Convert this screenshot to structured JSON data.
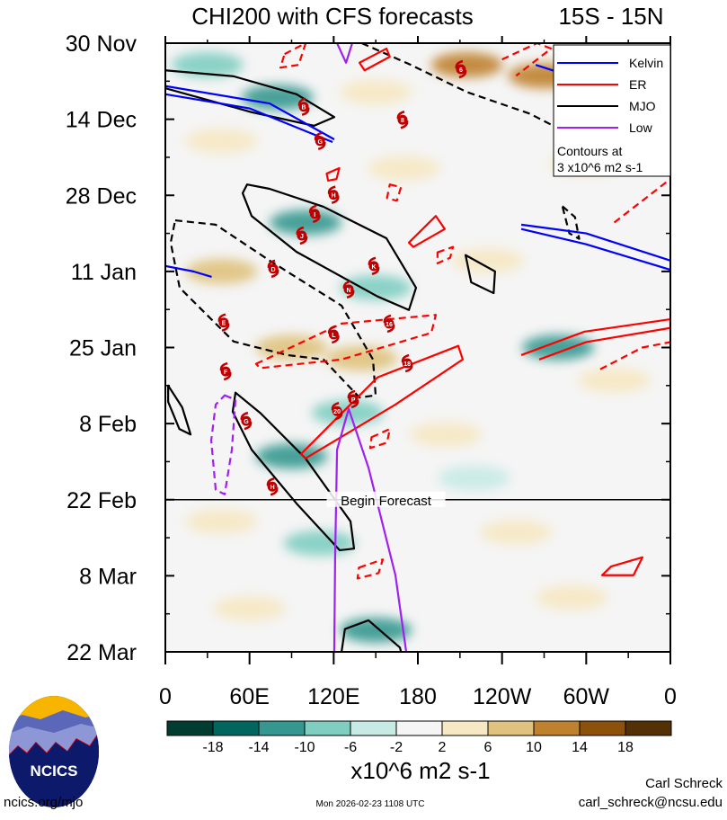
{
  "chart_data": {
    "type": "heatmap",
    "title": "CHI200 with CFS forecasts",
    "region": "15S - 15N",
    "x_axis": {
      "range_lon": [
        0,
        360
      ],
      "ticks": [
        {
          "lon": 0,
          "label": "0"
        },
        {
          "lon": 60,
          "label": "60E"
        },
        {
          "lon": 120,
          "label": "120E"
        },
        {
          "lon": 180,
          "label": "180"
        },
        {
          "lon": 240,
          "label": "120W"
        },
        {
          "lon": 300,
          "label": "60W"
        },
        {
          "lon": 360,
          "label": "0"
        }
      ]
    },
    "y_axis": {
      "range_days": [
        0,
        112
      ],
      "direction": "down",
      "ticks": [
        {
          "day": 0,
          "label": "30 Nov"
        },
        {
          "day": 14,
          "label": "14 Dec"
        },
        {
          "day": 28,
          "label": "28 Dec"
        },
        {
          "day": 42,
          "label": "11 Jan"
        },
        {
          "day": 56,
          "label": "25 Jan"
        },
        {
          "day": 70,
          "label": "8 Feb"
        },
        {
          "day": 84,
          "label": "22 Feb"
        },
        {
          "day": 98,
          "label": "8 Mar"
        },
        {
          "day": 112,
          "label": "22 Mar"
        }
      ]
    },
    "forecast_start": {
      "day": 84,
      "label": "Begin Forecast"
    },
    "colorbar": {
      "levels": [
        "-18",
        "-14",
        "-10",
        "-6",
        "-2",
        "2",
        "6",
        "10",
        "14",
        "18"
      ],
      "colors": [
        "#003c30",
        "#01665e",
        "#35978f",
        "#80cdc1",
        "#c7eae5",
        "#f5f5f5",
        "#f6e8c3",
        "#dfc27d",
        "#bf812d",
        "#8c510a",
        "#543005"
      ],
      "units": "x10^6 m2 s-1"
    },
    "anomaly_patches": [
      {
        "lon": 30,
        "day": 4,
        "value": -8
      },
      {
        "lon": 80,
        "day": 10,
        "value": -10
      },
      {
        "lon": 215,
        "day": 4,
        "value": 12
      },
      {
        "lon": 270,
        "day": 6,
        "value": 12
      },
      {
        "lon": 150,
        "day": 9,
        "value": 4
      },
      {
        "lon": 40,
        "day": 18,
        "value": 4
      },
      {
        "lon": 170,
        "day": 23,
        "value": 5
      },
      {
        "lon": 300,
        "day": 22,
        "value": 4
      },
      {
        "lon": 100,
        "day": 33,
        "value": -12
      },
      {
        "lon": 40,
        "day": 42,
        "value": 8
      },
      {
        "lon": 150,
        "day": 45,
        "value": -6
      },
      {
        "lon": 230,
        "day": 40,
        "value": 4
      },
      {
        "lon": 90,
        "day": 56,
        "value": 9
      },
      {
        "lon": 140,
        "day": 58,
        "value": 7
      },
      {
        "lon": 280,
        "day": 56,
        "value": -10
      },
      {
        "lon": 320,
        "day": 62,
        "value": 6
      },
      {
        "lon": 90,
        "day": 76,
        "value": -10
      },
      {
        "lon": 130,
        "day": 68,
        "value": -8
      },
      {
        "lon": 200,
        "day": 72,
        "value": 4
      },
      {
        "lon": 40,
        "day": 88,
        "value": 5
      },
      {
        "lon": 110,
        "day": 92,
        "value": -6
      },
      {
        "lon": 250,
        "day": 90,
        "value": 4
      },
      {
        "lon": 150,
        "day": 108,
        "value": -10
      },
      {
        "lon": 60,
        "day": 104,
        "value": 3
      },
      {
        "lon": 290,
        "day": 102,
        "value": 4
      },
      {
        "lon": 220,
        "day": 80,
        "value": -4
      }
    ],
    "contours": [
      {
        "wave": "MJO",
        "dashed": false,
        "closed": false,
        "points": [
          [
            0,
            5
          ],
          [
            48.7,
            6.1
          ],
          [
            93.5,
            9.4
          ],
          [
            120.4,
            13.6
          ],
          [
            106,
            15.2
          ],
          [
            61.5,
            12.7
          ],
          [
            0,
            8.3
          ]
        ]
      },
      {
        "wave": "MJO",
        "dashed": false,
        "closed": true,
        "points": [
          [
            58.3,
            26.0
          ],
          [
            74.3,
            26.8
          ],
          [
            112.7,
            30.1
          ],
          [
            157.6,
            35.9
          ],
          [
            178.7,
            45.0
          ],
          [
            173.6,
            49.1
          ],
          [
            151.2,
            46.6
          ],
          [
            93.5,
            38.4
          ],
          [
            61.5,
            31.8
          ],
          [
            55.1,
            27.6
          ]
        ]
      },
      {
        "wave": "MJO",
        "dashed": true,
        "closed": true,
        "points": [
          [
            7.0,
            32.6
          ],
          [
            35.9,
            33.4
          ],
          [
            74.3,
            40.0
          ],
          [
            125.6,
            48.3
          ],
          [
            148.0,
            58.2
          ],
          [
            149.9,
            64.8
          ],
          [
            138.4,
            65.2
          ],
          [
            112.7,
            58.2
          ],
          [
            87.1,
            57.4
          ],
          [
            48.7,
            54.9
          ],
          [
            10.2,
            45.0
          ],
          [
            3.8,
            36.7
          ]
        ]
      },
      {
        "wave": "MJO",
        "dashed": true,
        "closed": false,
        "points": [
          [
            140,
            0
          ],
          [
            175,
            4
          ],
          [
            215,
            9
          ],
          [
            260,
            13
          ],
          [
            275,
            15
          ]
        ]
      },
      {
        "wave": "MJO",
        "dashed": false,
        "closed": true,
        "points": [
          [
            50.0,
            64.3
          ],
          [
            67.9,
            68.1
          ],
          [
            99.9,
            76.4
          ],
          [
            132.0,
            88.0
          ],
          [
            134.5,
            93.0
          ],
          [
            124.3,
            93.3
          ],
          [
            93.5,
            84.7
          ],
          [
            61.5,
            74.8
          ],
          [
            48.0,
            67.8
          ]
        ]
      },
      {
        "wave": "MJO",
        "dashed": false,
        "closed": true,
        "points": [
          [
            2,
            63
          ],
          [
            12,
            67
          ],
          [
            18,
            72
          ],
          [
            10,
            71
          ],
          [
            2,
            66
          ]
        ]
      },
      {
        "wave": "MJO",
        "dashed": false,
        "closed": true,
        "points": [
          [
            214,
            39
          ],
          [
            235,
            42
          ],
          [
            234,
            46
          ],
          [
            218,
            44
          ]
        ]
      },
      {
        "wave": "MJO",
        "dashed": false,
        "closed": false,
        "points": [
          [
            125.6,
            112
          ],
          [
            128,
            107.8
          ],
          [
            144.8,
            106.2
          ],
          [
            167.2,
            111.2
          ],
          [
            168,
            112
          ]
        ]
      },
      {
        "wave": "MJO",
        "dashed": true,
        "closed": true,
        "points": [
          [
            283,
            30
          ],
          [
            292,
            32
          ],
          [
            295,
            36
          ],
          [
            288,
            35
          ]
        ]
      },
      {
        "wave": "Kelvin",
        "dashed": false,
        "closed": false,
        "points": [
          [
            0,
            9.4
          ],
          [
            60,
            12
          ],
          [
            119.2,
            18.2
          ]
        ]
      },
      {
        "wave": "Kelvin",
        "dashed": false,
        "closed": false,
        "points": [
          [
            0,
            7.9
          ],
          [
            74.3,
            11.1
          ],
          [
            120.4,
            17.7
          ]
        ]
      },
      {
        "wave": "Kelvin",
        "dashed": false,
        "closed": false,
        "points": [
          [
            253.7,
            33.4
          ],
          [
            300,
            35
          ],
          [
            360,
            40.0
          ]
        ]
      },
      {
        "wave": "Kelvin",
        "dashed": false,
        "closed": false,
        "points": [
          [
            253.7,
            34.2
          ],
          [
            300,
            37
          ],
          [
            360,
            41.7
          ]
        ]
      },
      {
        "wave": "Kelvin",
        "dashed": false,
        "closed": false,
        "points": [
          [
            0,
            41
          ],
          [
            20,
            42
          ],
          [
            33,
            43
          ]
        ]
      },
      {
        "wave": "Kelvin",
        "dashed": false,
        "closed": false,
        "points": [
          [
            264,
            4
          ],
          [
            300,
            7
          ],
          [
            330,
            11
          ]
        ]
      },
      {
        "wave": "ER",
        "dashed": false,
        "closed": true,
        "points": [
          [
            96.7,
            75.6
          ],
          [
            151.2,
            61.5
          ],
          [
            208.8,
            55.7
          ],
          [
            212,
            58.2
          ],
          [
            164,
            66.5
          ],
          [
            99.9,
            76.4
          ]
        ]
      },
      {
        "wave": "ER",
        "dashed": false,
        "closed": true,
        "points": [
          [
            173.6,
            36.7
          ],
          [
            192.8,
            31.8
          ],
          [
            199.2,
            34.2
          ],
          [
            176.8,
            37.5
          ]
        ]
      },
      {
        "wave": "ER",
        "dashed": false,
        "closed": false,
        "points": [
          [
            253.7,
            57.4
          ],
          [
            298.5,
            53.1
          ],
          [
            360,
            50.8
          ],
          [
            360,
            52.4
          ],
          [
            300,
            55
          ],
          [
            266.5,
            58.2
          ]
        ]
      },
      {
        "wave": "ER",
        "dashed": false,
        "closed": true,
        "points": [
          [
            138.4,
            3.6
          ],
          [
            157.6,
            1.0
          ],
          [
            160,
            2.5
          ],
          [
            142,
            5.0
          ]
        ]
      },
      {
        "wave": "ER",
        "dashed": false,
        "closed": true,
        "points": [
          [
            317.7,
            96.3
          ],
          [
            340.1,
            94.6
          ],
          [
            333.7,
            97.9
          ],
          [
            311.3,
            97.9
          ]
        ]
      },
      {
        "wave": "ER",
        "dashed": false,
        "closed": true,
        "points": [
          [
            115,
            24
          ],
          [
            124,
            23
          ],
          [
            122,
            25
          ],
          [
            116,
            25.3
          ]
        ]
      },
      {
        "wave": "ER",
        "dashed": true,
        "closed": true,
        "points": [
          [
            64.7,
            59.0
          ],
          [
            125.6,
            51.6
          ],
          [
            192.8,
            50.0
          ],
          [
            189.6,
            53.3
          ],
          [
            125.6,
            58.2
          ],
          [
            67.3,
            59.8
          ]
        ]
      },
      {
        "wave": "ER",
        "dashed": true,
        "closed": true,
        "points": [
          [
            160,
            26
          ],
          [
            168,
            26.5
          ],
          [
            165,
            29
          ],
          [
            158,
            28.5
          ]
        ]
      },
      {
        "wave": "ER",
        "dashed": true,
        "closed": true,
        "points": [
          [
            147,
            72.5
          ],
          [
            160,
            71
          ],
          [
            158,
            73.5
          ],
          [
            146,
            74.5
          ]
        ]
      },
      {
        "wave": "ER",
        "dashed": true,
        "closed": true,
        "points": [
          [
            138,
            96.5
          ],
          [
            155,
            95
          ],
          [
            152,
            97.5
          ],
          [
            137,
            98.5
          ]
        ]
      },
      {
        "wave": "ER",
        "dashed": true,
        "closed": true,
        "points": [
          [
            194,
            38.5
          ],
          [
            205,
            37.5
          ],
          [
            203,
            39.5
          ],
          [
            194,
            40.5
          ]
        ]
      },
      {
        "wave": "ER",
        "dashed": true,
        "closed": false,
        "points": [
          [
            310,
            60
          ],
          [
            340,
            56
          ],
          [
            360,
            55
          ]
        ]
      },
      {
        "wave": "ER",
        "dashed": true,
        "closed": false,
        "points": [
          [
            320,
            33
          ],
          [
            345,
            28
          ],
          [
            360,
            25
          ]
        ]
      },
      {
        "wave": "ER",
        "dashed": true,
        "closed": true,
        "points": [
          [
            85,
            2
          ],
          [
            100,
            0
          ],
          [
            95,
            4
          ],
          [
            82,
            4.5
          ]
        ]
      },
      {
        "wave": "ER",
        "dashed": true,
        "closed": false,
        "points": [
          [
            240,
            3
          ],
          [
            265,
            0
          ],
          [
            275,
            1
          ],
          [
            250,
            6
          ]
        ]
      },
      {
        "wave": "Low",
        "dashed": false,
        "closed": false,
        "points": [
          [
            120.4,
            112
          ],
          [
            121,
            95
          ],
          [
            122.4,
            74.8
          ],
          [
            130.7,
            67.3
          ],
          [
            144.8,
            78.1
          ],
          [
            164,
            97.9
          ],
          [
            171.7,
            112
          ]
        ]
      },
      {
        "wave": "Low",
        "dashed": true,
        "closed": true,
        "points": [
          [
            42.3,
            64.8
          ],
          [
            50,
            65.6
          ],
          [
            47.4,
            74.8
          ],
          [
            42.3,
            83.0
          ],
          [
            35.9,
            82.2
          ],
          [
            32.7,
            73.1
          ],
          [
            35.9,
            66.5
          ]
        ]
      },
      {
        "wave": "Low",
        "dashed": false,
        "closed": false,
        "points": [
          [
            122.4,
            0
          ],
          [
            128.8,
            3.6
          ],
          [
            133.2,
            0
          ]
        ]
      }
    ],
    "storms": [
      {
        "label": "B",
        "lon": 98.7,
        "day": 11.7
      },
      {
        "label": "G",
        "lon": 110.3,
        "day": 18.0
      },
      {
        "label": "H",
        "lon": 119.9,
        "day": 27.9
      },
      {
        "label": "I",
        "lon": 106.5,
        "day": 31.4
      },
      {
        "label": "J",
        "lon": 97.3,
        "day": 35.4
      },
      {
        "label": "D",
        "lon": 76.9,
        "day": 41.5
      },
      {
        "label": "K",
        "lon": 148.6,
        "day": 41.0
      },
      {
        "label": "N",
        "lon": 130.7,
        "day": 45.3
      },
      {
        "label": "E",
        "lon": 41.6,
        "day": 51.4
      },
      {
        "label": "L",
        "lon": 120.0,
        "day": 53.6
      },
      {
        "label": "16",
        "lon": 159.5,
        "day": 51.6
      },
      {
        "label": "18",
        "lon": 172.4,
        "day": 58.9
      },
      {
        "label": "F",
        "lon": 43.0,
        "day": 60.4
      },
      {
        "label": "P",
        "lon": 133.9,
        "day": 65.5
      },
      {
        "label": "20",
        "lon": 122.4,
        "day": 67.7
      },
      {
        "label": "G",
        "lon": 57.6,
        "day": 69.5
      },
      {
        "label": "H",
        "lon": 76.3,
        "day": 81.6
      },
      {
        "label": "8",
        "lon": 169.1,
        "day": 14.1
      },
      {
        "label": "6",
        "lon": 210.7,
        "day": 4.8
      }
    ],
    "legend": {
      "placement": "top-right",
      "entries": [
        {
          "label": "Kelvin",
          "color": "#0000ff"
        },
        {
          "label": "ER",
          "color": "#ff0000"
        },
        {
          "label": "MJO",
          "color": "#000000"
        },
        {
          "label": "Low",
          "color": "#a020f0"
        }
      ],
      "note_line1": "Contours at",
      "note_line2": "3 x10^6 m2 s-1"
    }
  },
  "footer": {
    "logo_text": "NCICS",
    "url": "ncics.org/mjo",
    "timestamp": "Mon 2026-02-23 1108 UTC",
    "author": "Carl Schreck",
    "email": "carl_schreck@ncsu.edu"
  }
}
